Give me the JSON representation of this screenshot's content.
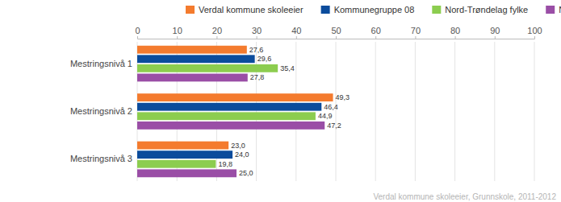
{
  "chart_data": {
    "type": "bar",
    "orientation": "horizontal",
    "categories": [
      "Mestringsnivå 1",
      "Mestringsnivå 2",
      "Mestringsnivå 3"
    ],
    "series": [
      {
        "name": "Verdal kommune skoleeier",
        "color": "#f47b2e",
        "values": [
          27.6,
          49.3,
          23.0
        ],
        "value_labels": [
          "27,6",
          "49,3",
          "23,0"
        ]
      },
      {
        "name": "Kommunegruppe 08",
        "color": "#0b4c9c",
        "values": [
          29.6,
          46.4,
          24.0
        ],
        "value_labels": [
          "29,6",
          "46,4",
          "24,0"
        ]
      },
      {
        "name": "Nord-Trøndelag fylke",
        "color": "#8ccd4f",
        "values": [
          35.4,
          44.9,
          19.8
        ],
        "value_labels": [
          "35,4",
          "44,9",
          "19,8"
        ]
      },
      {
        "name": "Nasjonalt",
        "color": "#9a4ea6",
        "values": [
          27.8,
          47.2,
          25.0
        ],
        "value_labels": [
          "27,8",
          "47,2",
          "25,0"
        ]
      }
    ],
    "xlim": [
      0,
      100
    ],
    "xticks": [
      0,
      10,
      20,
      30,
      40,
      50,
      60,
      70,
      80,
      90,
      100
    ],
    "grid": true,
    "data_labels": true,
    "legend": "top",
    "annotations": [
      "Verdal kommune skoleeier, Grunnskole, 2011-2012"
    ]
  }
}
